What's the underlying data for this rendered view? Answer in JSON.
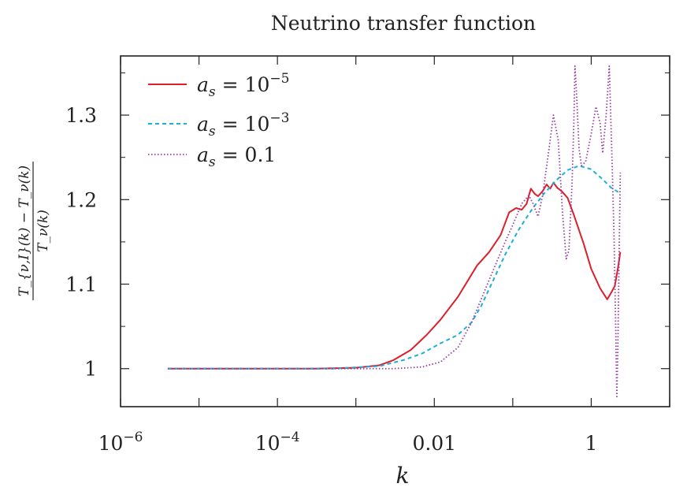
{
  "chart_data": {
    "type": "line",
    "title": "Neutrino transfer function",
    "xlabel": "k",
    "ylabel": {
      "numerator": "T_{ν,I}(k) − T_ν(k)",
      "denominator": "T_ν(k)"
    },
    "x_scale": "log",
    "xlim": [
      1e-06,
      10
    ],
    "ylim": [
      0.955,
      1.37
    ],
    "x_ticks": [
      {
        "value": 1e-06,
        "label_base": "10",
        "label_exp": "−6"
      },
      {
        "value": 0.0001,
        "label_base": "10",
        "label_exp": "−4"
      },
      {
        "value": 0.01,
        "label_base": "0.01",
        "label_exp": ""
      },
      {
        "value": 1,
        "label_base": "1",
        "label_exp": ""
      }
    ],
    "y_ticks": [
      {
        "value": 1.0,
        "label": "1"
      },
      {
        "value": 1.1,
        "label": "1.1"
      },
      {
        "value": 1.2,
        "label": "1.2"
      },
      {
        "value": 1.3,
        "label": "1.3"
      }
    ],
    "legend_position": "top-left",
    "series": [
      {
        "name": "a_s = 10^{-5}",
        "legend_var": "a",
        "legend_sub": "s",
        "legend_rhs": "= 10",
        "legend_exp": "−5",
        "color": "#dd1f2b",
        "dash": "none",
        "stroke_width": 2,
        "points": [
          [
            4e-06,
            1.0
          ],
          [
            0.0003,
            1.0
          ],
          [
            0.001,
            1.001
          ],
          [
            0.002,
            1.004
          ],
          [
            0.003,
            1.01
          ],
          [
            0.005,
            1.022
          ],
          [
            0.008,
            1.04
          ],
          [
            0.012,
            1.058
          ],
          [
            0.02,
            1.085
          ],
          [
            0.035,
            1.122
          ],
          [
            0.05,
            1.138
          ],
          [
            0.07,
            1.158
          ],
          [
            0.09,
            1.185
          ],
          [
            0.11,
            1.19
          ],
          [
            0.13,
            1.188
          ],
          [
            0.15,
            1.195
          ],
          [
            0.17,
            1.213
          ],
          [
            0.19,
            1.207
          ],
          [
            0.21,
            1.204
          ],
          [
            0.24,
            1.21
          ],
          [
            0.27,
            1.218
          ],
          [
            0.3,
            1.213
          ],
          [
            0.33,
            1.22
          ],
          [
            0.37,
            1.214
          ],
          [
            0.42,
            1.21
          ],
          [
            0.5,
            1.202
          ],
          [
            0.6,
            1.182
          ],
          [
            0.8,
            1.148
          ],
          [
            1.0,
            1.118
          ],
          [
            1.3,
            1.095
          ],
          [
            1.6,
            1.082
          ],
          [
            1.8,
            1.09
          ],
          [
            2.0,
            1.098
          ],
          [
            2.2,
            1.12
          ],
          [
            2.35,
            1.138
          ]
        ]
      },
      {
        "name": "a_s = 10^{-3}",
        "legend_var": "a",
        "legend_sub": "s",
        "legend_rhs": "= 10",
        "legend_exp": "−3",
        "color": "#1ab0d8",
        "dash": "5,4",
        "stroke_width": 2,
        "points": [
          [
            4e-06,
            1.0
          ],
          [
            0.0005,
            1.0
          ],
          [
            0.002,
            1.003
          ],
          [
            0.004,
            1.01
          ],
          [
            0.007,
            1.018
          ],
          [
            0.012,
            1.03
          ],
          [
            0.02,
            1.04
          ],
          [
            0.03,
            1.055
          ],
          [
            0.04,
            1.075
          ],
          [
            0.06,
            1.11
          ],
          [
            0.08,
            1.135
          ],
          [
            0.12,
            1.165
          ],
          [
            0.18,
            1.19
          ],
          [
            0.25,
            1.207
          ],
          [
            0.35,
            1.222
          ],
          [
            0.5,
            1.235
          ],
          [
            0.7,
            1.24
          ],
          [
            1.0,
            1.236
          ],
          [
            1.4,
            1.224
          ],
          [
            1.8,
            1.214
          ],
          [
            2.3,
            1.208
          ]
        ]
      },
      {
        "name": "a_s = 0.1",
        "legend_var": "a",
        "legend_sub": "s",
        "legend_rhs": "= 0.1",
        "legend_exp": "",
        "color": "#9a3aa5",
        "dash": "1.5,2.5",
        "stroke_width": 1.8,
        "points": [
          [
            4e-06,
            1.0
          ],
          [
            0.003,
            1.0
          ],
          [
            0.007,
            1.002
          ],
          [
            0.012,
            1.008
          ],
          [
            0.02,
            1.025
          ],
          [
            0.03,
            1.055
          ],
          [
            0.05,
            1.105
          ],
          [
            0.08,
            1.15
          ],
          [
            0.1,
            1.17
          ],
          [
            0.13,
            1.195
          ],
          [
            0.16,
            1.205
          ],
          [
            0.18,
            1.196
          ],
          [
            0.21,
            1.18
          ],
          [
            0.24,
            1.205
          ],
          [
            0.28,
            1.25
          ],
          [
            0.33,
            1.3
          ],
          [
            0.38,
            1.27
          ],
          [
            0.43,
            1.185
          ],
          [
            0.48,
            1.13
          ],
          [
            0.52,
            1.14
          ],
          [
            0.57,
            1.22
          ],
          [
            0.6,
            1.29
          ],
          [
            0.62,
            1.358
          ],
          [
            0.65,
            1.325
          ],
          [
            0.7,
            1.26
          ],
          [
            0.75,
            1.24
          ],
          [
            0.85,
            1.245
          ],
          [
            1.0,
            1.278
          ],
          [
            1.15,
            1.31
          ],
          [
            1.3,
            1.29
          ],
          [
            1.4,
            1.255
          ],
          [
            1.55,
            1.3
          ],
          [
            1.7,
            1.358
          ],
          [
            1.85,
            1.24
          ],
          [
            1.95,
            1.16
          ],
          [
            2.05,
            1.05
          ],
          [
            2.12,
            0.965
          ],
          [
            2.18,
            1.02
          ],
          [
            2.28,
            1.15
          ],
          [
            2.35,
            1.232
          ]
        ]
      }
    ]
  }
}
